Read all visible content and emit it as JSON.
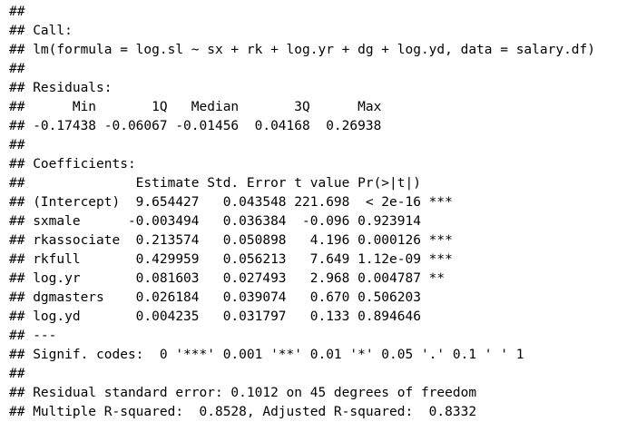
{
  "colors": {
    "background": "#ffffff",
    "text": "#000000"
  },
  "console": {
    "comment_prefix": "##",
    "lines": [
      "##",
      "## Call:",
      "## lm(formula = log.sl ~ sx + rk + log.yr + dg + log.yd, data = salary.df)",
      "##",
      "## Residuals:",
      "##      Min       1Q   Median       3Q      Max",
      "## -0.17438 -0.06067 -0.01456  0.04168  0.26938",
      "##",
      "## Coefficients:",
      "##              Estimate Std. Error t value Pr(>|t|)",
      "## (Intercept)  9.654427   0.043548 221.698  < 2e-16 ***",
      "## sxmale      -0.003494   0.036384  -0.096 0.923914",
      "## rkassociate  0.213574   0.050898   4.196 0.000126 ***",
      "## rkfull       0.429959   0.056213   7.649 1.12e-09 ***",
      "## log.yr       0.081603   0.027493   2.968 0.004787 **",
      "## dgmasters    0.026184   0.039074   0.670 0.506203",
      "## log.yd       0.004235   0.031797   0.133 0.894646",
      "## ---",
      "## Signif. codes:  0 '***' 0.001 '**' 0.01 '*' 0.05 '.' 0.1 ' ' 1",
      "##",
      "## Residual standard error: 0.1012 on 45 degrees of freedom",
      "## Multiple R-squared:  0.8528, Adjusted R-squared:  0.8332"
    ]
  },
  "model_summary": {
    "call": "lm(formula = log.sl ~ sx + rk + log.yr + dg + log.yd, data = salary.df)",
    "residuals": {
      "labels": [
        "Min",
        "1Q",
        "Median",
        "3Q",
        "Max"
      ],
      "values": [
        -0.17438,
        -0.06067,
        -0.01456,
        0.04168,
        0.26938
      ]
    },
    "coefficients": {
      "columns": [
        "Estimate",
        "Std. Error",
        "t value",
        "Pr(>|t|)"
      ],
      "rows": [
        {
          "term": "(Intercept)",
          "estimate": "9.654427",
          "std_error": "0.043548",
          "t_value": "221.698",
          "p_value": "< 2e-16",
          "signif": "***"
        },
        {
          "term": "sxmale",
          "estimate": "-0.003494",
          "std_error": "0.036384",
          "t_value": "-0.096",
          "p_value": "0.923914",
          "signif": ""
        },
        {
          "term": "rkassociate",
          "estimate": "0.213574",
          "std_error": "0.050898",
          "t_value": "4.196",
          "p_value": "0.000126",
          "signif": "***"
        },
        {
          "term": "rkfull",
          "estimate": "0.429959",
          "std_error": "0.056213",
          "t_value": "7.649",
          "p_value": "1.12e-09",
          "signif": "***"
        },
        {
          "term": "log.yr",
          "estimate": "0.081603",
          "std_error": "0.027493",
          "t_value": "2.968",
          "p_value": "0.004787",
          "signif": "**"
        },
        {
          "term": "dgmasters",
          "estimate": "0.026184",
          "std_error": "0.039074",
          "t_value": "0.670",
          "p_value": "0.506203",
          "signif": ""
        },
        {
          "term": "log.yd",
          "estimate": "0.004235",
          "std_error": "0.031797",
          "t_value": "0.133",
          "p_value": "0.894646",
          "signif": ""
        }
      ]
    },
    "signif_codes": "0 '***' 0.001 '**' 0.01 '*' 0.05 '.' 0.1 ' ' 1",
    "residual_standard_error": "0.1012",
    "degrees_of_freedom": "45",
    "multiple_r_squared": "0.8528",
    "adjusted_r_squared": "0.8332"
  }
}
